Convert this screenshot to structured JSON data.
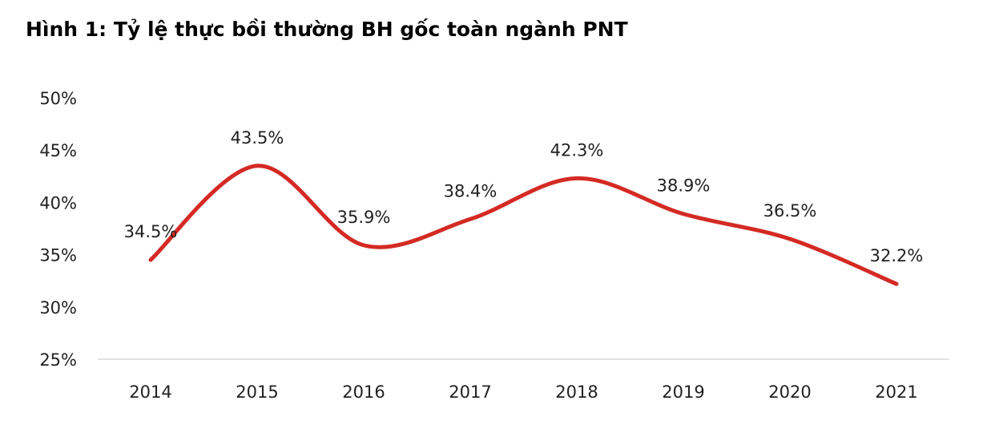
{
  "title": "Hình 1: Tỷ lệ thực bồi thường BH gốc toàn ngành PNT",
  "chart_data": {
    "type": "line",
    "title": "Hình 1: Tỷ lệ thực bồi thường BH gốc toàn ngành PNT",
    "xlabel": "",
    "ylabel": "",
    "categories": [
      "2014",
      "2015",
      "2016",
      "2017",
      "2018",
      "2019",
      "2020",
      "2021"
    ],
    "series": [
      {
        "values": [
          34.5,
          43.5,
          35.9,
          38.4,
          42.3,
          38.9,
          36.5,
          32.2
        ],
        "data_labels": [
          "34.5%",
          "43.5%",
          "35.9%",
          "38.4%",
          "42.3%",
          "38.9%",
          "36.5%",
          "32.2%"
        ],
        "color": "#d42a24",
        "smooth": true
      }
    ],
    "ylim": [
      25,
      50
    ],
    "yticks": [
      25,
      30,
      35,
      40,
      45,
      50
    ],
    "ytick_labels": [
      "25%",
      "30%",
      "35%",
      "40%",
      "45%",
      "50%"
    ],
    "grid": false,
    "legend": "none",
    "axis_color": "#d9d9d9"
  }
}
